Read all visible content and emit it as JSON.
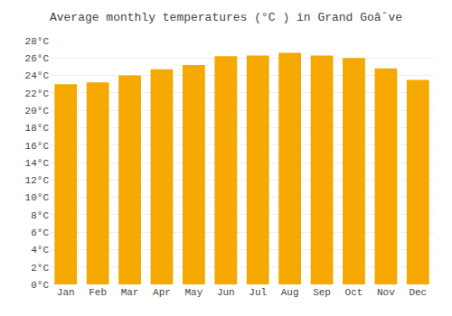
{
  "chart_data": {
    "type": "bar",
    "title": "Average monthly temperatures (°C ) in Grand Goâˆve",
    "categories": [
      "Jan",
      "Feb",
      "Mar",
      "Apr",
      "May",
      "Jun",
      "Jul",
      "Aug",
      "Sep",
      "Oct",
      "Nov",
      "Dec"
    ],
    "values": [
      23.0,
      23.2,
      24.0,
      24.7,
      25.2,
      26.2,
      26.3,
      26.6,
      26.3,
      26.0,
      24.8,
      23.5
    ],
    "color": "#F5A800",
    "ylim": [
      0,
      28
    ],
    "yticks": [
      {
        "value": 0,
        "label": "0°C"
      },
      {
        "value": 2,
        "label": "2°C"
      },
      {
        "value": 4,
        "label": "4°C"
      },
      {
        "value": 6,
        "label": "6°C"
      },
      {
        "value": 8,
        "label": "8°C"
      },
      {
        "value": 10,
        "label": "10°C"
      },
      {
        "value": 12,
        "label": "12°C"
      },
      {
        "value": 14,
        "label": "14°C"
      },
      {
        "value": 16,
        "label": "16°C"
      },
      {
        "value": 18,
        "label": "18°C"
      },
      {
        "value": 20,
        "label": "20°C"
      },
      {
        "value": 22,
        "label": "22°C"
      },
      {
        "value": 24,
        "label": "24°C"
      },
      {
        "value": 26,
        "label": "26°C"
      },
      {
        "value": 28,
        "label": "28°C"
      }
    ],
    "grid": true
  }
}
